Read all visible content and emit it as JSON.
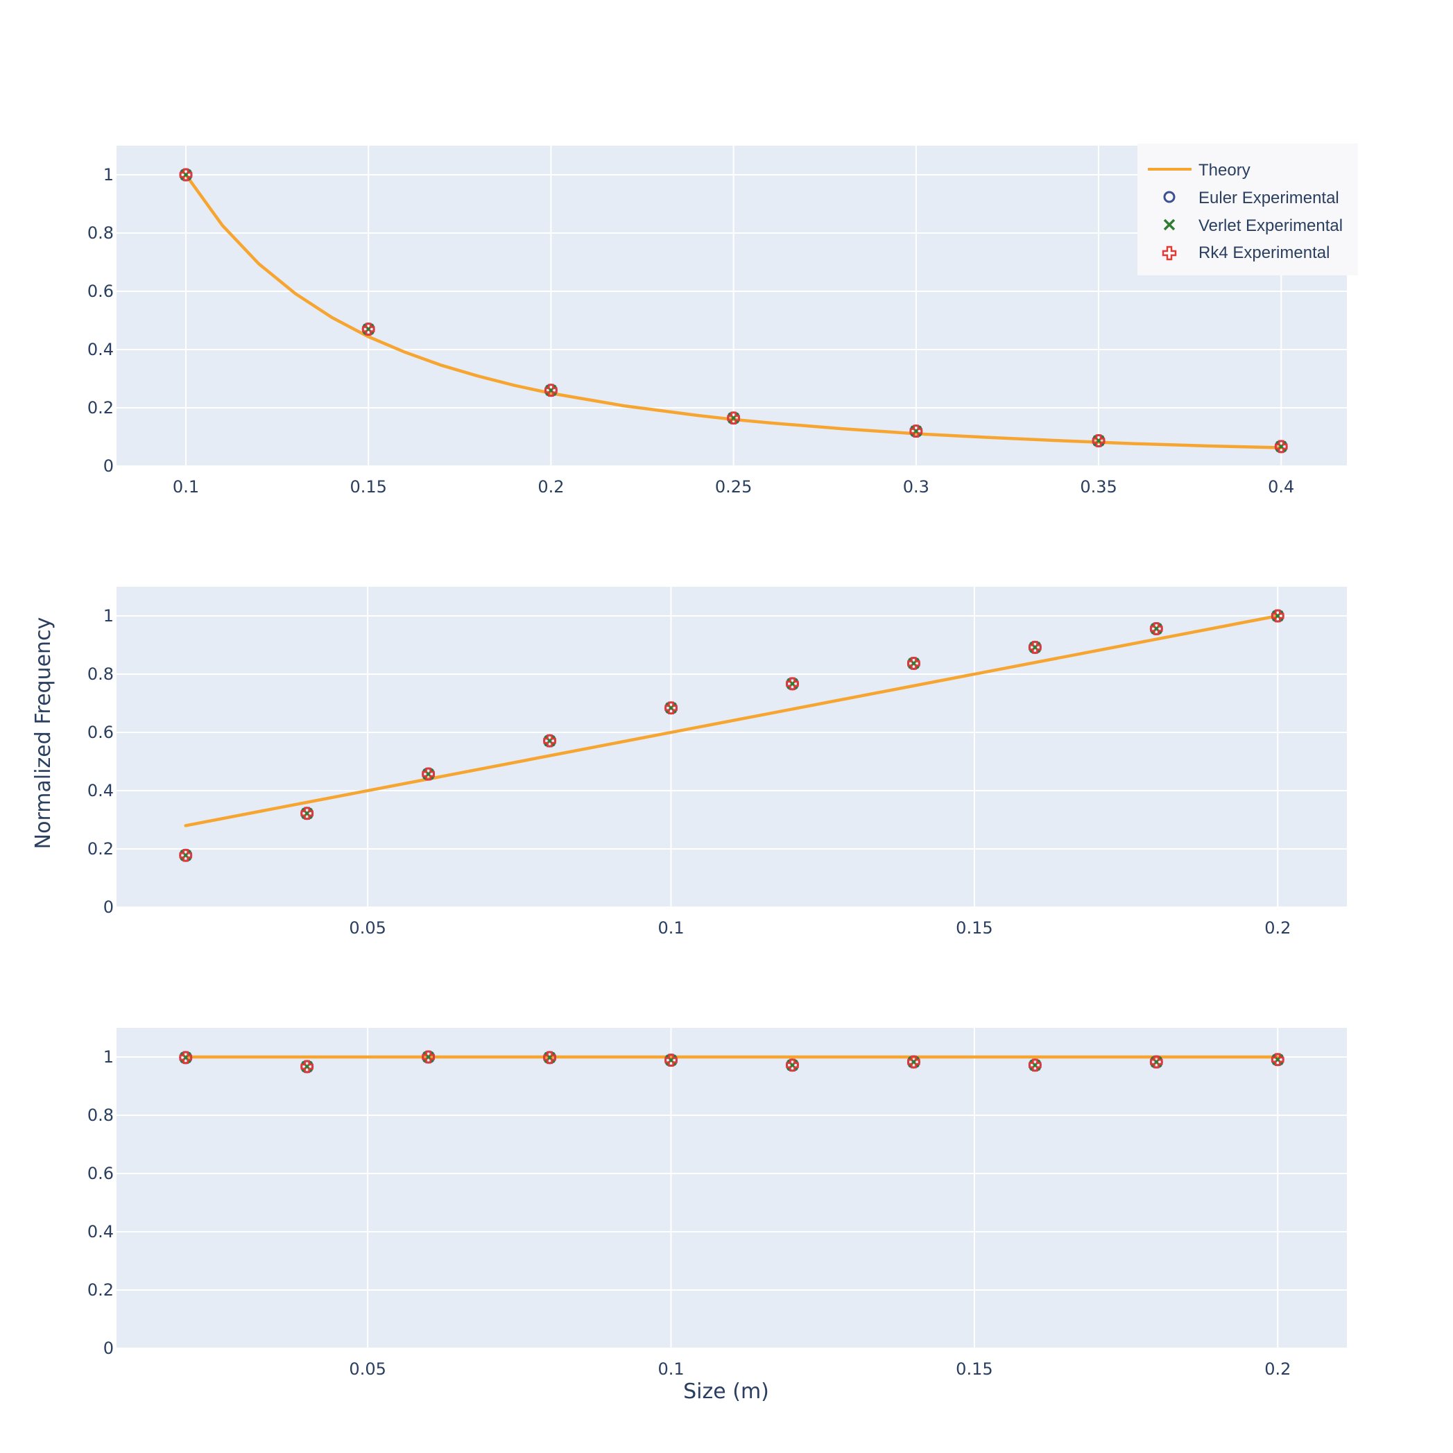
{
  "figure": {
    "ylabel": "Normalized Frequency",
    "xlabel": "Size (m)"
  },
  "legend": {
    "placement": "top-right",
    "items": [
      {
        "label": "Theory",
        "symbol": "line",
        "color": "#f7a531"
      },
      {
        "label": "Euler Experimental",
        "symbol": "circle-open",
        "color": "#3b4f94"
      },
      {
        "label": "Verlet Experimental",
        "symbol": "x",
        "color": "#2e7d32"
      },
      {
        "label": "Rk4 Experimental",
        "symbol": "cross-open",
        "color": "#e53935"
      }
    ]
  },
  "colors": {
    "plot_bg": "#e5ecf6",
    "grid": "#ffffff",
    "tick_text": "#2a3f5f",
    "theory": "#f7a531",
    "euler": "#3b4f94",
    "verlet": "#2e7d32",
    "rk4": "#e53935"
  },
  "chart_data": [
    {
      "type": "line",
      "grid": true,
      "xlim": [
        0.081,
        0.418
      ],
      "ylim": [
        0,
        1.1
      ],
      "xticks": [
        0.1,
        0.15,
        0.2,
        0.25,
        0.3,
        0.35,
        0.4
      ],
      "xtick_labels": [
        "0.1",
        "0.15",
        "0.2",
        "0.25",
        "0.3",
        "0.35",
        "0.4"
      ],
      "yticks": [
        0,
        0.2,
        0.4,
        0.6,
        0.8,
        1
      ],
      "ytick_labels": [
        "0",
        "0.2",
        "0.4",
        "0.6",
        "0.8",
        "1"
      ],
      "theory": {
        "x": [
          0.1,
          0.11,
          0.12,
          0.13,
          0.14,
          0.15,
          0.16,
          0.17,
          0.18,
          0.19,
          0.2,
          0.22,
          0.24,
          0.25,
          0.26,
          0.28,
          0.3,
          0.32,
          0.34,
          0.35,
          0.36,
          0.38,
          0.4
        ],
        "y": [
          1.0,
          0.826,
          0.694,
          0.592,
          0.51,
          0.444,
          0.391,
          0.346,
          0.309,
          0.277,
          0.25,
          0.207,
          0.174,
          0.16,
          0.148,
          0.128,
          0.111,
          0.098,
          0.087,
          0.082,
          0.077,
          0.069,
          0.063
        ]
      },
      "experimental": {
        "x": [
          0.1,
          0.15,
          0.2,
          0.25,
          0.3,
          0.35,
          0.4
        ],
        "euler": [
          1.0,
          0.47,
          0.26,
          0.165,
          0.12,
          0.087,
          0.067
        ],
        "verlet": [
          1.0,
          0.47,
          0.26,
          0.165,
          0.12,
          0.087,
          0.067
        ],
        "rk4": [
          1.0,
          0.47,
          0.26,
          0.165,
          0.12,
          0.087,
          0.067
        ]
      }
    },
    {
      "type": "line",
      "grid": true,
      "xlim": [
        0.0086,
        0.2114
      ],
      "ylim": [
        0,
        1.1
      ],
      "xticks": [
        0.05,
        0.1,
        0.15,
        0.2
      ],
      "xtick_labels": [
        "0.05",
        "0.1",
        "0.15",
        "0.2"
      ],
      "yticks": [
        0,
        0.2,
        0.4,
        0.6,
        0.8,
        1
      ],
      "ytick_labels": [
        "0",
        "0.2",
        "0.4",
        "0.6",
        "0.8",
        "1"
      ],
      "theory": {
        "x": [
          0.02,
          0.2
        ],
        "y": [
          0.28,
          1.0
        ]
      },
      "experimental": {
        "x": [
          0.02,
          0.04,
          0.06,
          0.08,
          0.1,
          0.12,
          0.14,
          0.16,
          0.18,
          0.2
        ],
        "euler": [
          0.178,
          0.322,
          0.457,
          0.571,
          0.684,
          0.767,
          0.837,
          0.892,
          0.956,
          1.0
        ],
        "verlet": [
          0.178,
          0.322,
          0.457,
          0.571,
          0.684,
          0.767,
          0.837,
          0.892,
          0.956,
          1.0
        ],
        "rk4": [
          0.178,
          0.322,
          0.457,
          0.571,
          0.684,
          0.767,
          0.837,
          0.892,
          0.956,
          1.0
        ]
      }
    },
    {
      "type": "line",
      "grid": true,
      "xlim": [
        0.0086,
        0.2114
      ],
      "ylim": [
        0,
        1.1
      ],
      "xticks": [
        0.05,
        0.1,
        0.15,
        0.2
      ],
      "xtick_labels": [
        "0.05",
        "0.1",
        "0.15",
        "0.2"
      ],
      "yticks": [
        0,
        0.2,
        0.4,
        0.6,
        0.8,
        1
      ],
      "ytick_labels": [
        "0",
        "0.2",
        "0.4",
        "0.6",
        "0.8",
        "1"
      ],
      "theory": {
        "x": [
          0.02,
          0.2
        ],
        "y": [
          1.0,
          1.0
        ]
      },
      "experimental": {
        "x": [
          0.02,
          0.04,
          0.06,
          0.08,
          0.1,
          0.12,
          0.14,
          0.16,
          0.18,
          0.2
        ],
        "euler": [
          0.998,
          0.967,
          1.0,
          0.998,
          0.989,
          0.972,
          0.983,
          0.972,
          0.983,
          0.991
        ],
        "verlet": [
          0.998,
          0.967,
          1.0,
          0.998,
          0.989,
          0.972,
          0.983,
          0.972,
          0.983,
          0.991
        ],
        "rk4": [
          0.998,
          0.967,
          1.0,
          0.998,
          0.989,
          0.972,
          0.983,
          0.972,
          0.983,
          0.991
        ]
      }
    }
  ]
}
